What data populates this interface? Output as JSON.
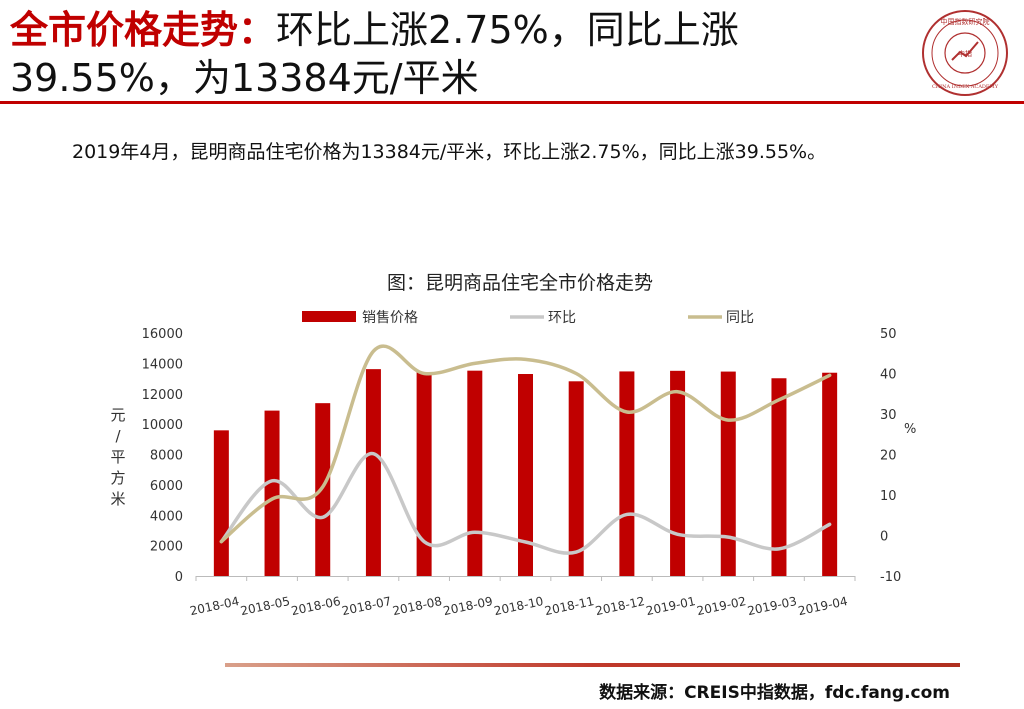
{
  "title": {
    "lead": "全市价格走势：",
    "rest": "环比上涨2.75%，同比上涨39.55%，为13384元/平米"
  },
  "logo": {
    "top_text": "中国指数研究院",
    "center_text": "中指",
    "bottom_text": "CHINA INDEX ACADEMY"
  },
  "summary": "2019年4月，昆明商品住宅价格为13384元/平米，环比上涨2.75%，同比上涨39.55%。",
  "chart_title": "图：昆明商品住宅全市价格走势",
  "source": "数据来源：CREIS中指数据，fdc.fang.com",
  "colors": {
    "accent": "#c00000",
    "bar": "#c00000",
    "mom": "#c8c8c8",
    "yoy": "#c9bd8f"
  },
  "chart_data": {
    "type": "bar",
    "title": "图：昆明商品住宅全市价格走势",
    "categories": [
      "2018-04",
      "2018-05",
      "2018-06",
      "2018-07",
      "2018-08",
      "2018-09",
      "2018-10",
      "2018-11",
      "2018-12",
      "2019-01",
      "2019-02",
      "2019-03",
      "2019-04"
    ],
    "series": [
      {
        "name": "销售价格",
        "type": "bar",
        "axis": "left",
        "values": [
          9591,
          10890,
          11380,
          13620,
          13420,
          13520,
          13300,
          12820,
          13470,
          13510,
          13460,
          13020,
          13384
        ]
      },
      {
        "name": "环比",
        "type": "line",
        "axis": "right",
        "values": [
          -1.5,
          13.5,
          4.5,
          20.2,
          -1.5,
          0.8,
          -1.6,
          -4.1,
          5.2,
          0.3,
          -0.4,
          -3.3,
          2.75
        ]
      },
      {
        "name": "同比",
        "type": "line",
        "axis": "right",
        "values": [
          -1.5,
          9,
          12,
          45.5,
          40,
          42.5,
          43.5,
          40,
          30.5,
          35.5,
          28.5,
          33.5,
          39.55
        ]
      }
    ],
    "ylabel": "元/平方米",
    "y2label": "%",
    "ylim": [
      0,
      16000
    ],
    "yticks": [
      0,
      2000,
      4000,
      6000,
      8000,
      10000,
      12000,
      14000,
      16000
    ],
    "y2lim": [
      -10,
      50
    ],
    "y2ticks": [
      -10,
      0,
      10,
      20,
      30,
      40,
      50
    ],
    "legend_position": "top",
    "grid": false
  }
}
